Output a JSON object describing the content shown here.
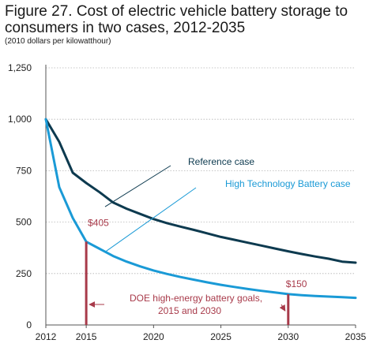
{
  "chart_data": {
    "type": "line",
    "title": "Figure 27. Cost of electric vehicle battery storage to consumers in two cases, 2012-2035",
    "subtitle": "(2010 dollars per kilowatthour)",
    "xlabel": "",
    "ylabel": "",
    "xlim": [
      2012,
      2035
    ],
    "ylim": [
      0,
      1250
    ],
    "xticks": [
      "2012",
      "2015",
      "2020",
      "2025",
      "2030",
      "2035"
    ],
    "yticks": [
      "0",
      "250",
      "500",
      "750",
      "1,000",
      "1,250"
    ],
    "grid": true,
    "series": [
      {
        "name": "Reference case",
        "color": "#0d3a4f",
        "x": [
          2012,
          2013,
          2014,
          2015,
          2016,
          2017,
          2018,
          2019,
          2020,
          2021,
          2022,
          2023,
          2024,
          2025,
          2026,
          2027,
          2028,
          2029,
          2030,
          2031,
          2032,
          2033,
          2034,
          2035
        ],
        "values": [
          1000,
          890,
          740,
          690,
          645,
          595,
          565,
          540,
          515,
          495,
          478,
          462,
          445,
          428,
          414,
          400,
          386,
          372,
          358,
          345,
          333,
          322,
          308,
          303
        ]
      },
      {
        "name": "High Technology Battery case",
        "color": "#1a9ad6",
        "x": [
          2012,
          2013,
          2014,
          2015,
          2016,
          2017,
          2018,
          2019,
          2020,
          2021,
          2022,
          2023,
          2024,
          2025,
          2026,
          2027,
          2028,
          2029,
          2030,
          2031,
          2032,
          2033,
          2034,
          2035
        ],
        "values": [
          1000,
          670,
          520,
          405,
          370,
          335,
          308,
          285,
          265,
          248,
          233,
          220,
          207,
          195,
          185,
          175,
          166,
          158,
          150,
          145,
          141,
          138,
          135,
          132
        ]
      }
    ],
    "annotations": {
      "goal_label_2015": "$405",
      "goal_label_2030": "$150",
      "goals_text_line1": "DOE high-energy battery goals,",
      "goals_text_line2": "2015 and 2030",
      "goal_years": [
        2015,
        2030
      ],
      "goal_values": [
        405,
        150
      ],
      "goal_color": "#a83a4a"
    }
  }
}
